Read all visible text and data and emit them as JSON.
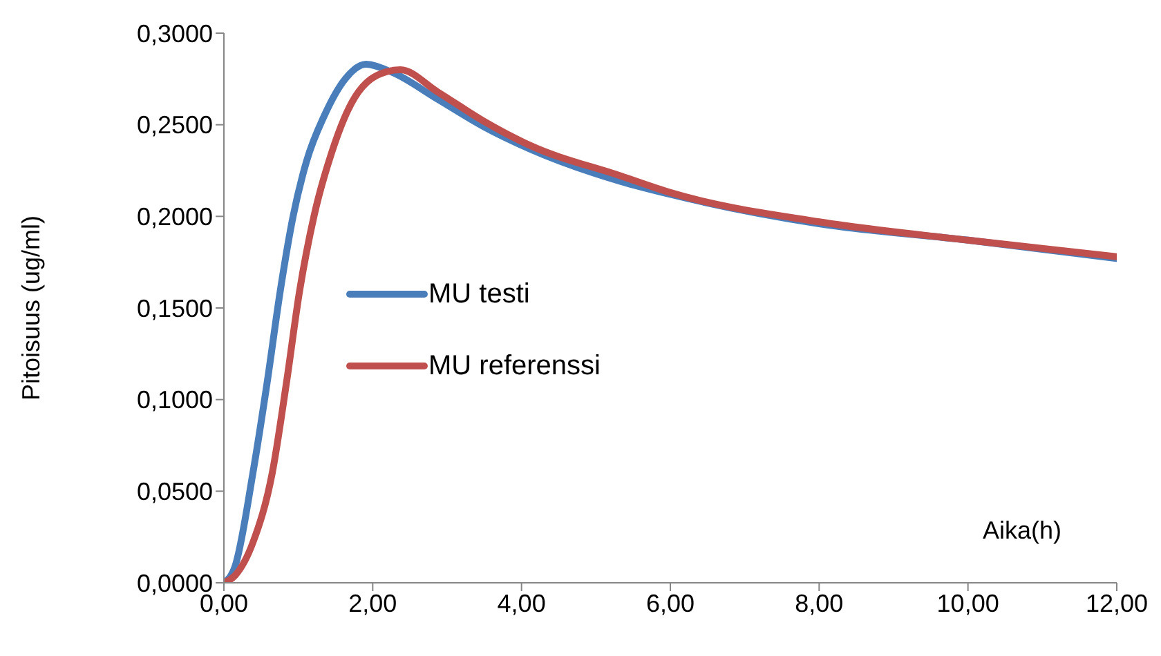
{
  "chart_data": {
    "type": "line",
    "xlabel": "Aika(h)",
    "ylabel": "Pitoisuus (ug/ml)",
    "xlim": [
      0,
      12
    ],
    "xticks": [
      {
        "value": 0,
        "label": "0,00"
      },
      {
        "value": 2,
        "label": "2,00"
      },
      {
        "value": 4,
        "label": "4,00"
      },
      {
        "value": 6,
        "label": "6,00"
      },
      {
        "value": 8,
        "label": "8,00"
      },
      {
        "value": 10,
        "label": "10,00"
      },
      {
        "value": 12,
        "label": "12,00"
      }
    ],
    "ylim": [
      0,
      0.3
    ],
    "yticks": [
      {
        "value": 0,
        "label": "0,0000"
      },
      {
        "value": 0.05,
        "label": "0,0500"
      },
      {
        "value": 0.1,
        "label": "0,1000"
      },
      {
        "value": 0.15,
        "label": "0,1500"
      },
      {
        "value": 0.2,
        "label": "0,2000"
      },
      {
        "value": 0.25,
        "label": "0,2500"
      },
      {
        "value": 0.3,
        "label": "0,3000"
      }
    ],
    "grid": false,
    "legend": "left",
    "marker": "none",
    "line_style": "solid",
    "series": [
      {
        "name": "MU testi",
        "color": "#4a7ebb",
        "x": [
          0,
          0.15,
          0.39,
          0.58,
          0.76,
          0.93,
          1.11,
          1.35,
          1.63,
          1.91,
          2.24,
          2.87,
          3.49,
          4.1,
          5.34,
          6,
          8,
          10,
          12
        ],
        "values": [
          0,
          0.009,
          0.06,
          0.109,
          0.16,
          0.2,
          0.23,
          0.255,
          0.275,
          0.283,
          0.279,
          0.264,
          0.249,
          0.237,
          0.219,
          0.212,
          0.196,
          0.187,
          0.177
        ]
      },
      {
        "name": "MU referenssi",
        "color": "#c0504d",
        "x": [
          0,
          0.15,
          0.39,
          0.65,
          0.84,
          1.02,
          1.21,
          1.45,
          1.76,
          2.19,
          2.37,
          2.87,
          3.49,
          4.1,
          5.34,
          6,
          8,
          10,
          12
        ],
        "values": [
          0,
          0.004,
          0.022,
          0.06,
          0.109,
          0.16,
          0.2,
          0.235,
          0.265,
          0.279,
          0.28,
          0.268,
          0.252,
          0.239,
          0.222,
          0.213,
          0.197,
          0.187,
          0.178
        ]
      }
    ]
  }
}
